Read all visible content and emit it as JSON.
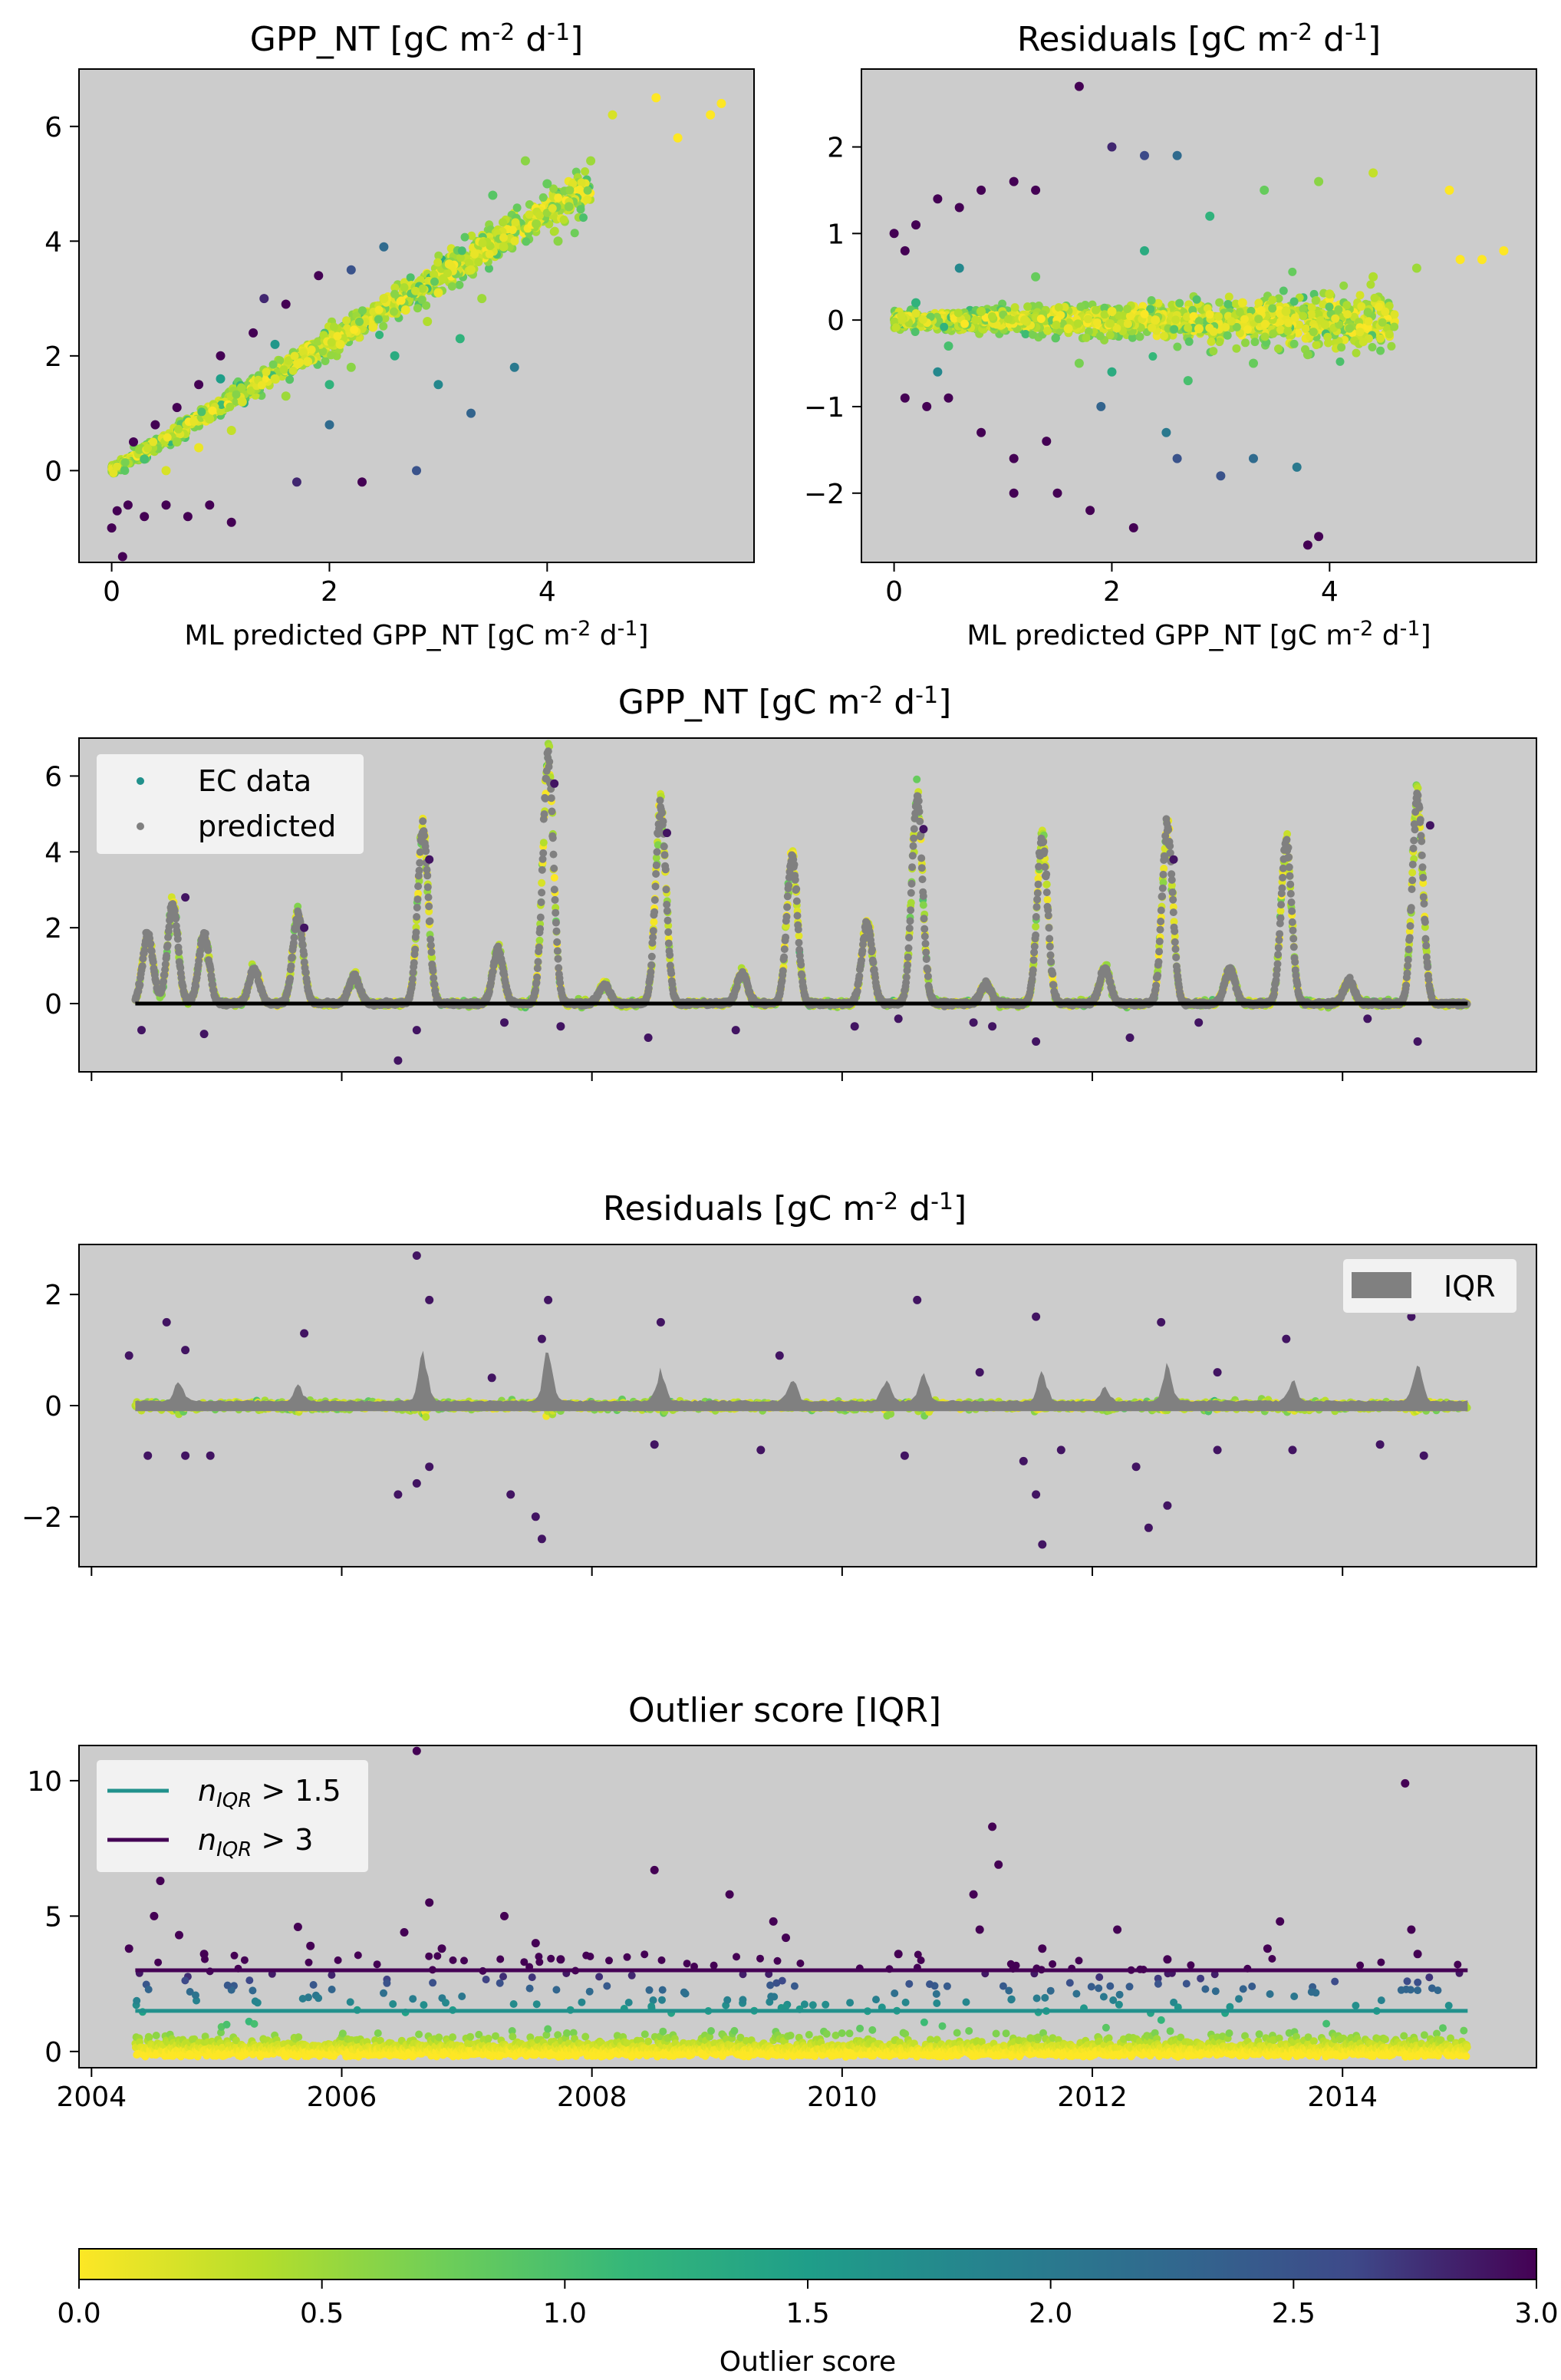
{
  "colors": {
    "panel_bg": "#cccccc",
    "ec_data_marker": "#21918c",
    "predicted_marker": "#808080",
    "zero_line": "#000000",
    "iqr_band": "#808080",
    "line_nIQR_1_5": "#21918c",
    "line_nIQR_3": "#440154",
    "colormap": "viridis_r"
  },
  "chart_data": [
    {
      "id": "scatter_gpp",
      "type": "scatter",
      "title": "GPP_NT [gC m",
      "title_sup1": "-2",
      "title_mid": " d",
      "title_sup2": "-1",
      "title_end": "]",
      "xlabel": "ML predicted GPP_NT [gC m",
      "xlabel_sup1": "-2",
      "xlabel_mid": " d",
      "xlabel_sup2": "-1",
      "xlabel_end": "]",
      "xlim": [
        -0.3,
        5.9
      ],
      "ylim": [
        -1.6,
        7.0
      ],
      "xticks": [
        "0",
        "2",
        "4"
      ],
      "yticks": [
        "0",
        "2",
        "4",
        "6"
      ],
      "color_by": "outlier score (viridis_r, 0-3)",
      "points": [
        [
          0.0,
          -1.0,
          3.0
        ],
        [
          0.1,
          -1.5,
          3.0
        ],
        [
          0.05,
          -0.7,
          3.0
        ],
        [
          0.15,
          -0.6,
          3.0
        ],
        [
          0.3,
          -0.8,
          3.0
        ],
        [
          0.5,
          -0.6,
          3.0
        ],
        [
          0.7,
          -0.8,
          3.0
        ],
        [
          0.9,
          -0.6,
          3.0
        ],
        [
          1.1,
          -0.9,
          3.0
        ],
        [
          0.2,
          0.5,
          3.0
        ],
        [
          0.4,
          0.8,
          3.0
        ],
        [
          0.6,
          1.1,
          3.0
        ],
        [
          0.8,
          1.5,
          3.0
        ],
        [
          1.0,
          2.0,
          3.0
        ],
        [
          1.3,
          2.4,
          3.0
        ],
        [
          1.6,
          2.9,
          3.0
        ],
        [
          1.9,
          3.4,
          3.0
        ],
        [
          2.2,
          3.5,
          2.5
        ],
        [
          2.5,
          3.9,
          2.2
        ],
        [
          1.4,
          3.0,
          2.8
        ],
        [
          1.7,
          -0.2,
          2.8
        ],
        [
          2.3,
          -0.2,
          3.0
        ],
        [
          2.8,
          0.0,
          2.5
        ],
        [
          2.0,
          0.8,
          2.2
        ],
        [
          3.3,
          1.0,
          2.3
        ],
        [
          3.7,
          1.8,
          2.0
        ],
        [
          3.0,
          1.5,
          1.8
        ],
        [
          0.3,
          0.2,
          1.0
        ],
        [
          0.6,
          0.5,
          0.5
        ],
        [
          0.9,
          0.9,
          0.3
        ],
        [
          1.2,
          1.2,
          0.2
        ],
        [
          1.5,
          1.6,
          0.2
        ],
        [
          1.8,
          1.9,
          0.1
        ],
        [
          2.1,
          2.2,
          0.1
        ],
        [
          2.4,
          2.5,
          0.1
        ],
        [
          2.7,
          2.8,
          0.1
        ],
        [
          3.0,
          3.1,
          0.1
        ],
        [
          3.3,
          3.5,
          0.2
        ],
        [
          3.6,
          3.9,
          0.3
        ],
        [
          3.9,
          4.3,
          0.5
        ],
        [
          4.2,
          4.6,
          0.6
        ],
        [
          4.0,
          5.0,
          0.8
        ],
        [
          3.5,
          4.8,
          0.9
        ],
        [
          4.4,
          5.4,
          0.5
        ],
        [
          5.0,
          6.5,
          0.0
        ],
        [
          5.2,
          5.8,
          0.0
        ],
        [
          5.5,
          6.2,
          0.0
        ],
        [
          5.6,
          6.4,
          0.0
        ],
        [
          4.6,
          6.2,
          0.2
        ],
        [
          3.8,
          5.4,
          0.6
        ],
        [
          2.0,
          1.5,
          1.2
        ],
        [
          2.6,
          2.0,
          1.3
        ],
        [
          3.2,
          2.3,
          1.2
        ],
        [
          1.0,
          1.6,
          1.5
        ],
        [
          1.5,
          2.2,
          1.6
        ],
        [
          0.5,
          0.0,
          0.2
        ],
        [
          0.8,
          0.4,
          0.1
        ],
        [
          1.1,
          0.7,
          0.3
        ],
        [
          1.6,
          1.3,
          0.5
        ],
        [
          2.2,
          1.8,
          0.6
        ],
        [
          2.9,
          2.6,
          0.4
        ],
        [
          3.4,
          3.0,
          0.5
        ],
        [
          4.1,
          4.0,
          0.6
        ],
        [
          3.1,
          3.6,
          0.1
        ],
        [
          2.5,
          3.0,
          0.2
        ]
      ]
    },
    {
      "id": "scatter_resid",
      "type": "scatter",
      "title": "Residuals [gC m",
      "title_sup1": "-2",
      "title_mid": " d",
      "title_sup2": "-1",
      "title_end": "]",
      "xlabel": "ML predicted GPP_NT [gC m",
      "xlabel_sup1": "-2",
      "xlabel_mid": " d",
      "xlabel_sup2": "-1",
      "xlabel_end": "]",
      "xlim": [
        -0.3,
        5.9
      ],
      "ylim": [
        -2.8,
        2.9
      ],
      "xticks": [
        "0",
        "2",
        "4"
      ],
      "yticks": [
        "−2",
        "−1",
        "0",
        "1",
        "2"
      ],
      "color_by": "outlier score (viridis_r, 0-3)",
      "points": [
        [
          0.0,
          1.0,
          3.0
        ],
        [
          0.1,
          0.8,
          3.0
        ],
        [
          0.2,
          1.1,
          3.0
        ],
        [
          0.4,
          1.4,
          3.0
        ],
        [
          0.6,
          1.3,
          3.0
        ],
        [
          0.8,
          1.5,
          3.0
        ],
        [
          1.1,
          1.6,
          3.0
        ],
        [
          1.3,
          1.5,
          3.0
        ],
        [
          1.7,
          2.7,
          3.0
        ],
        [
          2.0,
          2.0,
          2.8
        ],
        [
          2.3,
          1.9,
          2.6
        ],
        [
          2.6,
          1.9,
          2.2
        ],
        [
          0.1,
          -0.9,
          3.0
        ],
        [
          0.3,
          -1.0,
          3.0
        ],
        [
          0.5,
          -0.9,
          3.0
        ],
        [
          0.8,
          -1.3,
          3.0
        ],
        [
          1.1,
          -1.6,
          3.0
        ],
        [
          1.4,
          -1.4,
          3.0
        ],
        [
          1.1,
          -2.0,
          3.0
        ],
        [
          1.5,
          -2.0,
          3.0
        ],
        [
          1.8,
          -2.2,
          3.0
        ],
        [
          2.2,
          -2.4,
          3.0
        ],
        [
          3.8,
          -2.6,
          3.0
        ],
        [
          3.9,
          -2.5,
          3.0
        ],
        [
          2.6,
          -1.6,
          2.5
        ],
        [
          3.0,
          -1.8,
          2.5
        ],
        [
          3.3,
          -1.6,
          2.2
        ],
        [
          3.7,
          -1.7,
          2.0
        ],
        [
          1.9,
          -1.0,
          2.3
        ],
        [
          2.5,
          -1.3,
          2.0
        ],
        [
          0.2,
          0.2,
          1.2
        ],
        [
          0.5,
          -0.3,
          1.0
        ],
        [
          0.8,
          0.1,
          0.4
        ],
        [
          1.2,
          0.0,
          0.2
        ],
        [
          1.6,
          -0.1,
          0.1
        ],
        [
          2.0,
          0.1,
          0.1
        ],
        [
          2.4,
          0.0,
          0.1
        ],
        [
          2.8,
          -0.1,
          0.1
        ],
        [
          3.2,
          0.2,
          0.1
        ],
        [
          3.6,
          0.1,
          0.2
        ],
        [
          4.0,
          0.3,
          0.3
        ],
        [
          4.4,
          0.5,
          0.4
        ],
        [
          4.8,
          0.6,
          0.5
        ],
        [
          5.2,
          0.7,
          0.0
        ],
        [
          5.4,
          0.7,
          0.0
        ],
        [
          5.6,
          0.8,
          0.0
        ],
        [
          5.1,
          1.5,
          0.0
        ],
        [
          4.4,
          1.7,
          0.3
        ],
        [
          3.9,
          1.6,
          0.6
        ],
        [
          3.4,
          1.5,
          0.8
        ],
        [
          2.9,
          1.2,
          1.2
        ],
        [
          2.3,
          0.8,
          1.3
        ],
        [
          2.0,
          -0.6,
          1.3
        ],
        [
          2.7,
          -0.7,
          1.0
        ],
        [
          3.3,
          -0.5,
          0.8
        ],
        [
          3.8,
          -0.4,
          0.6
        ],
        [
          1.3,
          0.5,
          0.8
        ],
        [
          1.7,
          -0.5,
          0.7
        ],
        [
          0.6,
          0.6,
          1.8
        ],
        [
          0.4,
          -0.6,
          1.8
        ]
      ]
    },
    {
      "id": "ts_gpp",
      "type": "scatter",
      "title": "GPP_NT [gC m",
      "title_sup1": "-2",
      "title_mid": " d",
      "title_sup2": "-1",
      "title_end": "]",
      "xlim": [
        2003.9,
        2015.55
      ],
      "ylim": [
        -1.8,
        7.0
      ],
      "yticks": [
        "0",
        "2",
        "4",
        "6"
      ],
      "legend": [
        "EC data",
        "predicted"
      ],
      "legend_position": "upper-left",
      "zero_line": [
        2004.35,
        2015.0
      ],
      "peaks": [
        [
          2004.45,
          1.8
        ],
        [
          2004.65,
          2.6
        ],
        [
          2004.9,
          1.8
        ],
        [
          2005.3,
          0.9
        ],
        [
          2005.65,
          2.3
        ],
        [
          2006.1,
          0.7
        ],
        [
          2006.65,
          4.6
        ],
        [
          2007.25,
          1.4
        ],
        [
          2007.65,
          6.5
        ],
        [
          2008.1,
          0.5
        ],
        [
          2008.55,
          5.2
        ],
        [
          2009.2,
          0.8
        ],
        [
          2009.6,
          3.9
        ],
        [
          2010.2,
          2.1
        ],
        [
          2010.6,
          5.4
        ],
        [
          2011.15,
          0.5
        ],
        [
          2011.6,
          4.3
        ],
        [
          2012.1,
          0.9
        ],
        [
          2012.6,
          4.6
        ],
        [
          2013.1,
          0.9
        ],
        [
          2013.55,
          4.2
        ],
        [
          2014.05,
          0.6
        ],
        [
          2014.6,
          5.5
        ]
      ],
      "outliers": [
        [
          2004.4,
          -0.7
        ],
        [
          2004.9,
          -0.8
        ],
        [
          2006.45,
          -1.5
        ],
        [
          2006.6,
          -0.7
        ],
        [
          2007.3,
          -0.5
        ],
        [
          2007.75,
          -0.6
        ],
        [
          2008.45,
          -0.9
        ],
        [
          2009.15,
          -0.7
        ],
        [
          2010.1,
          -0.6
        ],
        [
          2010.45,
          -0.4
        ],
        [
          2011.05,
          -0.5
        ],
        [
          2011.2,
          -0.6
        ],
        [
          2011.55,
          -1.0
        ],
        [
          2012.3,
          -0.9
        ],
        [
          2012.85,
          -0.5
        ],
        [
          2014.2,
          -0.4
        ],
        [
          2014.6,
          -1.0
        ],
        [
          2004.75,
          2.8
        ],
        [
          2005.7,
          2.0
        ],
        [
          2006.7,
          3.8
        ],
        [
          2007.7,
          5.8
        ],
        [
          2008.6,
          4.5
        ],
        [
          2010.65,
          4.6
        ],
        [
          2012.65,
          3.8
        ],
        [
          2014.7,
          4.7
        ]
      ]
    },
    {
      "id": "ts_resid",
      "type": "scatter",
      "title": "Residuals [gC m",
      "title_sup1": "-2",
      "title_mid": " d",
      "title_sup2": "-1",
      "title_end": "]",
      "xlim": [
        2003.9,
        2015.55
      ],
      "ylim": [
        -2.9,
        2.9
      ],
      "yticks": [
        "−2",
        "0",
        "2"
      ],
      "legend": [
        "IQR"
      ],
      "legend_position": "upper-right",
      "iqr_bumps": [
        [
          2004.7,
          0.4
        ],
        [
          2005.65,
          0.3
        ],
        [
          2006.65,
          1.0
        ],
        [
          2007.65,
          1.1
        ],
        [
          2008.55,
          0.6
        ],
        [
          2009.6,
          0.5
        ],
        [
          2010.35,
          0.4
        ],
        [
          2010.65,
          0.6
        ],
        [
          2011.6,
          0.6
        ],
        [
          2012.1,
          0.25
        ],
        [
          2012.6,
          0.7
        ],
        [
          2013.6,
          0.4
        ],
        [
          2014.6,
          0.8
        ]
      ],
      "positive_outliers": [
        [
          2004.3,
          0.9
        ],
        [
          2004.6,
          1.5
        ],
        [
          2004.75,
          1.0
        ],
        [
          2005.7,
          1.3
        ],
        [
          2006.6,
          2.7
        ],
        [
          2006.7,
          1.9
        ],
        [
          2007.65,
          1.9
        ],
        [
          2007.6,
          1.2
        ],
        [
          2008.55,
          1.5
        ],
        [
          2009.5,
          0.9
        ],
        [
          2010.6,
          1.9
        ],
        [
          2011.55,
          1.6
        ],
        [
          2012.55,
          1.5
        ],
        [
          2013.55,
          1.2
        ],
        [
          2014.55,
          1.6
        ],
        [
          2007.2,
          0.5
        ],
        [
          2011.1,
          0.6
        ],
        [
          2013.0,
          0.6
        ]
      ],
      "negative_outliers": [
        [
          2004.45,
          -0.9
        ],
        [
          2004.75,
          -0.9
        ],
        [
          2004.95,
          -0.9
        ],
        [
          2006.45,
          -1.6
        ],
        [
          2006.6,
          -1.4
        ],
        [
          2006.7,
          -1.1
        ],
        [
          2007.35,
          -1.6
        ],
        [
          2007.55,
          -2.0
        ],
        [
          2007.6,
          -2.4
        ],
        [
          2008.5,
          -0.7
        ],
        [
          2009.35,
          -0.8
        ],
        [
          2010.5,
          -0.9
        ],
        [
          2011.45,
          -1.0
        ],
        [
          2011.6,
          -2.5
        ],
        [
          2011.55,
          -1.6
        ],
        [
          2011.75,
          -0.8
        ],
        [
          2012.35,
          -1.1
        ],
        [
          2012.45,
          -2.2
        ],
        [
          2012.6,
          -1.8
        ],
        [
          2013.0,
          -0.8
        ],
        [
          2013.6,
          -0.8
        ],
        [
          2014.3,
          -0.7
        ],
        [
          2014.65,
          -0.9
        ]
      ]
    },
    {
      "id": "ts_outlier",
      "type": "scatter",
      "title": "Outlier score [IQR]",
      "xlim": [
        2003.9,
        2015.55
      ],
      "ylim": [
        -0.6,
        11.3
      ],
      "xticks": [
        "2004",
        "2006",
        "2008",
        "2010",
        "2012",
        "2014"
      ],
      "yticks": [
        "0",
        "5",
        "10"
      ],
      "legend": [
        {
          "base": "n",
          "sub": "IQR",
          "rest": " > 1.5"
        },
        {
          "base": "n",
          "sub": "IQR",
          "rest": " > 3"
        }
      ],
      "legend_position": "upper-left",
      "thresholds": [
        1.5,
        3
      ],
      "line_range": [
        2004.35,
        2015.0
      ],
      "high_points": [
        [
          2004.3,
          3.8
        ],
        [
          2004.55,
          6.3
        ],
        [
          2004.5,
          5.0
        ],
        [
          2004.7,
          4.3
        ],
        [
          2004.9,
          3.6
        ],
        [
          2005.65,
          4.6
        ],
        [
          2005.75,
          3.9
        ],
        [
          2006.6,
          11.1
        ],
        [
          2006.7,
          5.5
        ],
        [
          2006.5,
          4.4
        ],
        [
          2006.8,
          3.8
        ],
        [
          2007.3,
          5.0
        ],
        [
          2007.55,
          4.0
        ],
        [
          2007.75,
          3.4
        ],
        [
          2008.5,
          6.7
        ],
        [
          2009.1,
          5.8
        ],
        [
          2009.45,
          4.8
        ],
        [
          2009.55,
          4.2
        ],
        [
          2010.45,
          3.6
        ],
        [
          2011.05,
          5.8
        ],
        [
          2011.2,
          8.3
        ],
        [
          2011.25,
          6.9
        ],
        [
          2011.1,
          4.5
        ],
        [
          2011.6,
          3.8
        ],
        [
          2012.2,
          4.5
        ],
        [
          2012.6,
          3.4
        ],
        [
          2013.5,
          4.8
        ],
        [
          2013.4,
          3.8
        ],
        [
          2014.5,
          9.9
        ],
        [
          2014.55,
          4.5
        ],
        [
          2014.6,
          3.6
        ]
      ]
    },
    {
      "id": "colorbar",
      "type": "heatmap",
      "xlabel": "Outlier score",
      "range": [
        0,
        3
      ],
      "ticks": [
        "0.0",
        "0.5",
        "1.0",
        "1.5",
        "2.0",
        "2.5",
        "3.0"
      ],
      "colormap": "viridis_r"
    }
  ]
}
